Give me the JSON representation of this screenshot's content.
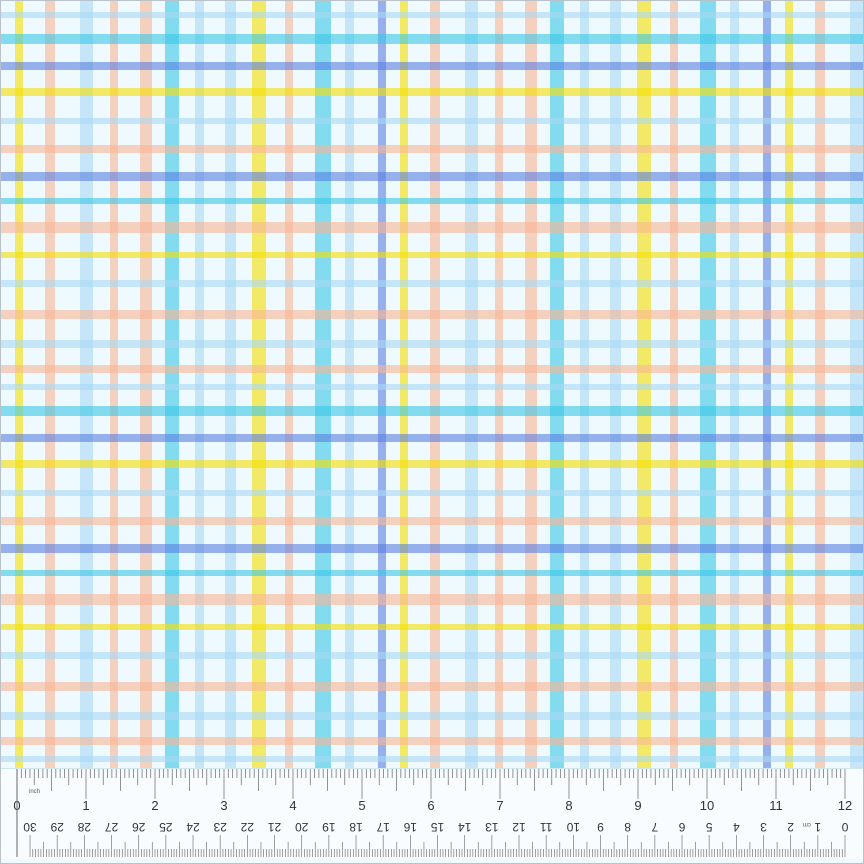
{
  "image": {
    "subject": "plaid fabric swatch",
    "colors": {
      "background": "#eefaff",
      "light_blue": "#a8d8f4",
      "cyan": "#3cc6e6",
      "blue": "#5b7fe0",
      "yellow": "#f5e000",
      "peach": "#f8b494"
    }
  },
  "ruler": {
    "unit_top": "inch",
    "unit_bottom": "cm",
    "inch_labels": [
      "0",
      "1",
      "2",
      "3",
      "4",
      "5",
      "6",
      "7",
      "8",
      "9",
      "10",
      "11",
      "12"
    ],
    "cm_labels": [
      "0",
      "1",
      "2",
      "3",
      "4",
      "5",
      "6",
      "7",
      "8",
      "9",
      "10",
      "11",
      "12",
      "13",
      "14",
      "15",
      "16",
      "17",
      "18",
      "19",
      "20",
      "21",
      "22",
      "23",
      "24",
      "25",
      "26",
      "27",
      "28",
      "29",
      "30"
    ]
  }
}
